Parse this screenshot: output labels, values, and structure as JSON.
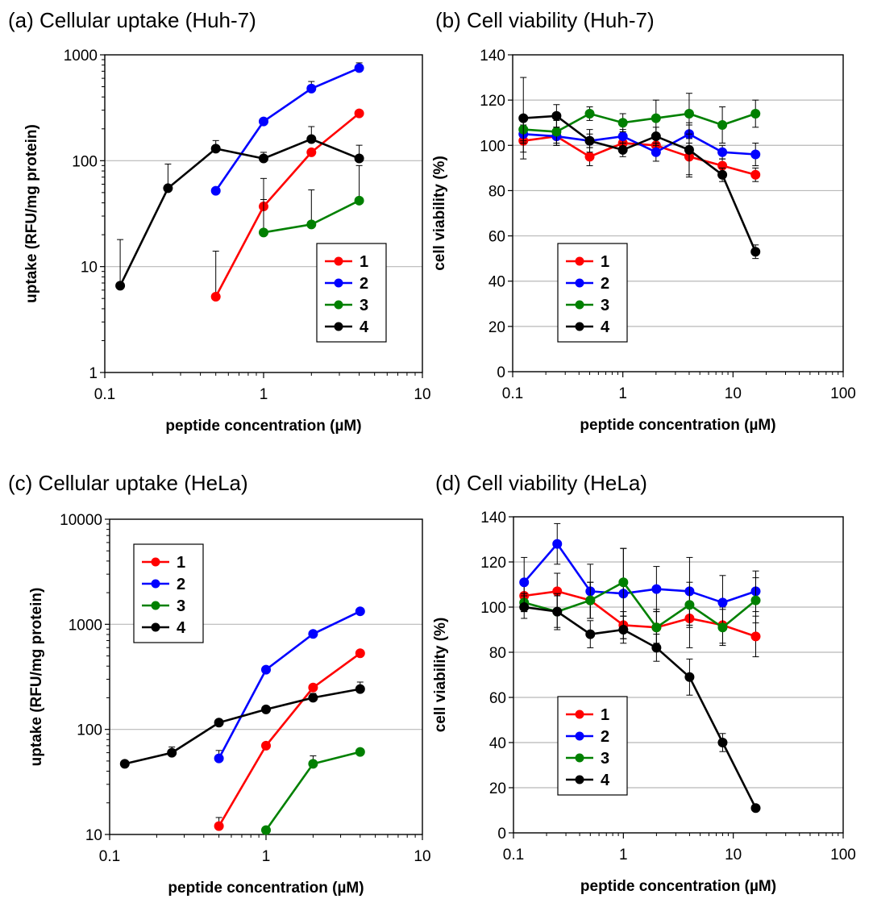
{
  "chart_data": [
    {
      "panel": "a",
      "type": "line",
      "title": "(a) Cellular uptake (Huh-7)",
      "xlabel": "peptide concentration (µM)",
      "ylabel": "uptake (RFU/mg protein)",
      "xscale": "log",
      "yscale": "log",
      "xlim": [
        0.1,
        10
      ],
      "ylim": [
        1,
        1000
      ],
      "xticks": [
        0.1,
        1,
        10
      ],
      "xtick_labels": [
        "0.1",
        "1",
        "10"
      ],
      "yticks": [
        1,
        10,
        100,
        1000
      ],
      "ytick_labels": [
        "1",
        "10",
        "100",
        "1000"
      ],
      "grid": "horizontal",
      "legend_position": "bottom-right",
      "series": [
        {
          "name": "1",
          "color": "#ff0000",
          "x": [
            0.5,
            1,
            2,
            4
          ],
          "y": [
            5.2,
            37,
            120,
            280
          ],
          "err": [
            8.8,
            31,
            0,
            0
          ]
        },
        {
          "name": "2",
          "color": "#0000ff",
          "x": [
            0.5,
            1,
            2,
            4
          ],
          "y": [
            52,
            235,
            480,
            750
          ],
          "err": [
            0,
            0,
            80,
            90
          ]
        },
        {
          "name": "3",
          "color": "#008000",
          "x": [
            1,
            2,
            4
          ],
          "y": [
            21,
            25,
            42
          ],
          "err": [
            22,
            28,
            48
          ]
        },
        {
          "name": "4",
          "color": "#000000",
          "x": [
            0.125,
            0.25,
            0.5,
            1,
            2,
            4
          ],
          "y": [
            6.6,
            55,
            130,
            105,
            160,
            105
          ],
          "err": [
            11.4,
            38,
            25,
            15,
            50,
            35
          ]
        }
      ]
    },
    {
      "panel": "b",
      "type": "line",
      "title": "(b) Cell viability (Huh-7)",
      "xlabel": "peptide concentration (µM)",
      "ylabel": "cell viability (%)",
      "xscale": "log",
      "yscale": "linear",
      "xlim": [
        0.1,
        100
      ],
      "ylim": [
        0,
        140
      ],
      "xticks": [
        0.1,
        1,
        10,
        100
      ],
      "xtick_labels": [
        "0.1",
        "1",
        "10",
        "100"
      ],
      "yticks": [
        0,
        20,
        40,
        60,
        80,
        100,
        120,
        140
      ],
      "ytick_labels": [
        "0",
        "20",
        "40",
        "60",
        "80",
        "100",
        "120",
        "140"
      ],
      "grid": "horizontal",
      "legend_position": "bottom-left",
      "series": [
        {
          "name": "1",
          "color": "#ff0000",
          "x": [
            0.125,
            0.25,
            0.5,
            1,
            2,
            4,
            8,
            16
          ],
          "y": [
            102,
            104,
            95,
            101,
            100,
            95,
            91,
            87
          ],
          "err": [
            5,
            4,
            4,
            3,
            4,
            8,
            3,
            3
          ]
        },
        {
          "name": "2",
          "color": "#0000ff",
          "x": [
            0.125,
            0.25,
            0.5,
            1,
            2,
            4,
            8,
            16
          ],
          "y": [
            105,
            104,
            102,
            104,
            97,
            105,
            97,
            96
          ],
          "err": [
            4,
            4,
            3,
            3,
            4,
            4,
            3,
            5
          ]
        },
        {
          "name": "3",
          "color": "#008000",
          "x": [
            0.125,
            0.25,
            0.5,
            1,
            2,
            4,
            8,
            16
          ],
          "y": [
            107,
            106,
            114,
            110,
            112,
            114,
            109,
            114
          ],
          "err": [
            5,
            5,
            3,
            4,
            8,
            9,
            8,
            6
          ]
        },
        {
          "name": "4",
          "color": "#000000",
          "x": [
            0.125,
            0.25,
            0.5,
            1,
            2,
            4,
            8,
            16
          ],
          "y": [
            112,
            113,
            102,
            98,
            104,
            98,
            87,
            53
          ],
          "err": [
            18,
            5,
            5,
            3,
            4,
            12,
            3,
            3
          ]
        }
      ]
    },
    {
      "panel": "c",
      "type": "line",
      "title": "(c) Cellular uptake (HeLa)",
      "xlabel": "peptide concentration (µM)",
      "ylabel": "uptake (RFU/mg protein)",
      "xscale": "log",
      "yscale": "log",
      "xlim": [
        0.1,
        10
      ],
      "ylim": [
        10,
        10000
      ],
      "xticks": [
        0.1,
        1,
        10
      ],
      "xtick_labels": [
        "0.1",
        "1",
        "10"
      ],
      "yticks": [
        10,
        100,
        1000,
        10000
      ],
      "ytick_labels": [
        "10",
        "100",
        "1000",
        "10000"
      ],
      "grid": "horizontal",
      "legend_position": "top-left",
      "series": [
        {
          "name": "1",
          "color": "#ff0000",
          "x": [
            0.5,
            1,
            2,
            4
          ],
          "y": [
            12,
            70,
            250,
            530
          ],
          "err": [
            2.5,
            0,
            0,
            0
          ]
        },
        {
          "name": "2",
          "color": "#0000ff",
          "x": [
            0.5,
            1,
            2,
            4
          ],
          "y": [
            53,
            370,
            810,
            1330
          ],
          "err": [
            10,
            0,
            0,
            0
          ]
        },
        {
          "name": "3",
          "color": "#008000",
          "x": [
            1,
            2,
            4
          ],
          "y": [
            11,
            47,
            61
          ],
          "err": [
            0,
            9,
            0
          ]
        },
        {
          "name": "4",
          "color": "#000000",
          "x": [
            0.125,
            0.25,
            0.5,
            1,
            2,
            4
          ],
          "y": [
            47,
            60,
            116,
            155,
            200,
            242
          ],
          "err": [
            0,
            8,
            0,
            0,
            20,
            40
          ]
        }
      ]
    },
    {
      "panel": "d",
      "type": "line",
      "title": "(d) Cell viability (HeLa)",
      "xlabel": "peptide concentration (µM)",
      "ylabel": "cell viability (%)",
      "xscale": "log",
      "yscale": "linear",
      "xlim": [
        0.1,
        100
      ],
      "ylim": [
        0,
        140
      ],
      "xticks": [
        0.1,
        1,
        10,
        100
      ],
      "xtick_labels": [
        "0.1",
        "1",
        "10",
        "100"
      ],
      "yticks": [
        0,
        20,
        40,
        60,
        80,
        100,
        120,
        140
      ],
      "ytick_labels": [
        "0",
        "20",
        "40",
        "60",
        "80",
        "100",
        "120",
        "140"
      ],
      "grid": "horizontal",
      "legend_position": "bottom-left",
      "series": [
        {
          "name": "1",
          "color": "#ff0000",
          "x": [
            0.125,
            0.25,
            0.5,
            1,
            2,
            4,
            8,
            16
          ],
          "y": [
            105,
            107,
            103,
            92,
            91,
            95,
            92,
            87
          ],
          "err": [
            7,
            8,
            8,
            6,
            7,
            13,
            8,
            9
          ]
        },
        {
          "name": "2",
          "color": "#0000ff",
          "x": [
            0.125,
            0.25,
            0.5,
            1,
            2,
            4,
            8,
            16
          ],
          "y": [
            111,
            128,
            107,
            106,
            108,
            107,
            102,
            107
          ],
          "err": [
            11,
            9,
            12,
            20,
            10,
            15,
            12,
            9
          ]
        },
        {
          "name": "3",
          "color": "#008000",
          "x": [
            0.125,
            0.25,
            0.5,
            1,
            2,
            4,
            8,
            16
          ],
          "y": [
            102,
            98,
            103,
            111,
            91,
            101,
            91,
            103
          ],
          "err": [
            4,
            7,
            8,
            15,
            8,
            10,
            8,
            10
          ]
        },
        {
          "name": "4",
          "color": "#000000",
          "x": [
            0.125,
            0.25,
            0.5,
            1,
            2,
            4,
            8,
            16
          ],
          "y": [
            100,
            98,
            88,
            90,
            82,
            69,
            40,
            11
          ],
          "err": [
            5,
            8,
            6,
            6,
            6,
            8,
            4,
            1
          ]
        }
      ]
    }
  ]
}
